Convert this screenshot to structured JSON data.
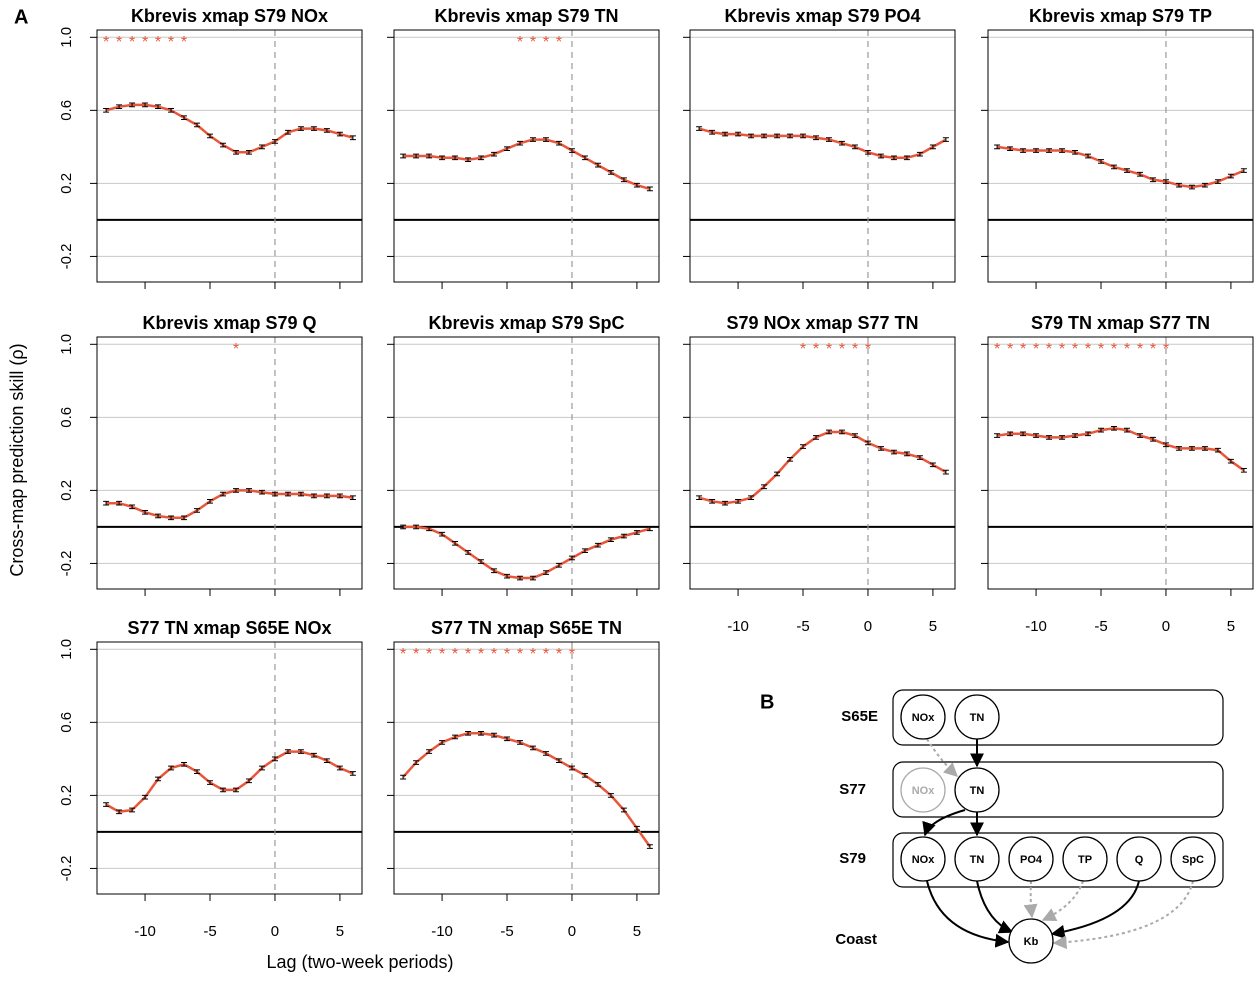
{
  "panel_label": "A",
  "ylabel": "Cross-map prediction skill (ρ)",
  "xlabel": "Lag (two-week periods)",
  "chart_data": [
    {
      "type": "line",
      "title": "Kbrevis xmap S79 NOx",
      "x": [
        -13,
        -12,
        -11,
        -10,
        -9,
        -8,
        -7,
        -6,
        -5,
        -4,
        -3,
        -2,
        -1,
        0,
        1,
        2,
        3,
        4,
        5,
        6
      ],
      "values": [
        0.6,
        0.62,
        0.63,
        0.63,
        0.62,
        0.6,
        0.56,
        0.52,
        0.46,
        0.41,
        0.37,
        0.37,
        0.4,
        0.43,
        0.48,
        0.5,
        0.5,
        0.49,
        0.47,
        0.45
      ],
      "errors": [
        0.01,
        0.01,
        0.01,
        0.01,
        0.01,
        0.01,
        0.01,
        0.01,
        0.01,
        0.01,
        0.01,
        0.01,
        0.01,
        0.01,
        0.01,
        0.01,
        0.01,
        0.01,
        0.01,
        0.01
      ],
      "color": "#e8573a",
      "xlim": [
        -13.7,
        6.7
      ],
      "ylim": [
        -0.34,
        1.04
      ],
      "xticks": [
        -10,
        -5,
        0,
        5
      ],
      "yticks": [
        {
          "value": -0.2,
          "label": "-0.2"
        },
        {
          "value": 0.2,
          "label": "0.2"
        },
        {
          "value": 0.6,
          "label": "0.6"
        },
        {
          "value": 1.0,
          "label": "1.0"
        }
      ],
      "grid": true,
      "xtick_labels": false,
      "ytick_labels": true,
      "sig_symbol": "*",
      "sig_lags": [
        -13,
        -12,
        -11,
        -10,
        -9,
        -8,
        -7
      ]
    },
    {
      "type": "line",
      "title": "Kbrevis xmap S79 TN",
      "x": [
        -13,
        -12,
        -11,
        -10,
        -9,
        -8,
        -7,
        -6,
        -5,
        -4,
        -3,
        -2,
        -1,
        0,
        1,
        2,
        3,
        4,
        5,
        6
      ],
      "values": [
        0.35,
        0.35,
        0.35,
        0.34,
        0.34,
        0.33,
        0.34,
        0.36,
        0.39,
        0.42,
        0.44,
        0.44,
        0.42,
        0.38,
        0.34,
        0.3,
        0.26,
        0.22,
        0.19,
        0.17
      ],
      "errors": [
        0.01,
        0.01,
        0.01,
        0.01,
        0.01,
        0.01,
        0.01,
        0.01,
        0.01,
        0.01,
        0.01,
        0.01,
        0.01,
        0.01,
        0.01,
        0.01,
        0.01,
        0.01,
        0.01,
        0.01
      ],
      "color": "#e8573a",
      "xlim": [
        -13.7,
        6.7
      ],
      "ylim": [
        -0.34,
        1.04
      ],
      "xticks": [
        -10,
        -5,
        0,
        5
      ],
      "yticks": [
        {
          "value": -0.2,
          "label": "-0.2"
        },
        {
          "value": 0.2,
          "label": "0.2"
        },
        {
          "value": 0.6,
          "label": "0.6"
        },
        {
          "value": 1.0,
          "label": "1.0"
        }
      ],
      "grid": true,
      "xtick_labels": false,
      "ytick_labels": false,
      "sig_symbol": "*",
      "sig_lags": [
        -4,
        -3,
        -2,
        -1
      ]
    },
    {
      "type": "line",
      "title": "Kbrevis xmap S79 PO4",
      "x": [
        -13,
        -12,
        -11,
        -10,
        -9,
        -8,
        -7,
        -6,
        -5,
        -4,
        -3,
        -2,
        -1,
        0,
        1,
        2,
        3,
        4,
        5,
        6
      ],
      "values": [
        0.5,
        0.48,
        0.47,
        0.47,
        0.46,
        0.46,
        0.46,
        0.46,
        0.46,
        0.45,
        0.44,
        0.42,
        0.4,
        0.37,
        0.35,
        0.34,
        0.34,
        0.36,
        0.4,
        0.44
      ],
      "errors": [
        0.01,
        0.01,
        0.01,
        0.01,
        0.01,
        0.01,
        0.01,
        0.01,
        0.01,
        0.01,
        0.01,
        0.01,
        0.01,
        0.01,
        0.01,
        0.01,
        0.01,
        0.01,
        0.01,
        0.01
      ],
      "color": "#e8573a",
      "xlim": [
        -13.7,
        6.7
      ],
      "ylim": [
        -0.34,
        1.04
      ],
      "xticks": [
        -10,
        -5,
        0,
        5
      ],
      "yticks": [
        {
          "value": -0.2,
          "label": "-0.2"
        },
        {
          "value": 0.2,
          "label": "0.2"
        },
        {
          "value": 0.6,
          "label": "0.6"
        },
        {
          "value": 1.0,
          "label": "1.0"
        }
      ],
      "grid": true,
      "xtick_labels": false,
      "ytick_labels": false
    },
    {
      "type": "line",
      "title": "Kbrevis xmap S79 TP",
      "x": [
        -13,
        -12,
        -11,
        -10,
        -9,
        -8,
        -7,
        -6,
        -5,
        -4,
        -3,
        -2,
        -1,
        0,
        1,
        2,
        3,
        4,
        5,
        6
      ],
      "values": [
        0.4,
        0.39,
        0.38,
        0.38,
        0.38,
        0.38,
        0.37,
        0.35,
        0.32,
        0.29,
        0.27,
        0.25,
        0.22,
        0.21,
        0.19,
        0.18,
        0.19,
        0.21,
        0.24,
        0.27
      ],
      "errors": [
        0.01,
        0.01,
        0.01,
        0.01,
        0.01,
        0.01,
        0.01,
        0.01,
        0.01,
        0.01,
        0.01,
        0.01,
        0.01,
        0.01,
        0.01,
        0.01,
        0.01,
        0.01,
        0.01,
        0.01
      ],
      "color": "#e8573a",
      "xlim": [
        -13.7,
        6.7
      ],
      "ylim": [
        -0.34,
        1.04
      ],
      "xticks": [
        -10,
        -5,
        0,
        5
      ],
      "yticks": [
        {
          "value": -0.2,
          "label": "-0.2"
        },
        {
          "value": 0.2,
          "label": "0.2"
        },
        {
          "value": 0.6,
          "label": "0.6"
        },
        {
          "value": 1.0,
          "label": "1.0"
        }
      ],
      "grid": true,
      "xtick_labels": false,
      "ytick_labels": false
    },
    {
      "type": "line",
      "title": "Kbrevis xmap S79 Q",
      "x": [
        -13,
        -12,
        -11,
        -10,
        -9,
        -8,
        -7,
        -6,
        -5,
        -4,
        -3,
        -2,
        -1,
        0,
        1,
        2,
        3,
        4,
        5,
        6
      ],
      "values": [
        0.13,
        0.13,
        0.11,
        0.08,
        0.06,
        0.05,
        0.05,
        0.09,
        0.14,
        0.18,
        0.2,
        0.2,
        0.19,
        0.18,
        0.18,
        0.18,
        0.17,
        0.17,
        0.17,
        0.16
      ],
      "errors": [
        0.01,
        0.01,
        0.01,
        0.01,
        0.01,
        0.01,
        0.01,
        0.01,
        0.01,
        0.01,
        0.01,
        0.01,
        0.01,
        0.01,
        0.01,
        0.01,
        0.01,
        0.01,
        0.01,
        0.01
      ],
      "color": "#e8573a",
      "xlim": [
        -13.7,
        6.7
      ],
      "ylim": [
        -0.34,
        1.04
      ],
      "xticks": [
        -10,
        -5,
        0,
        5
      ],
      "yticks": [
        {
          "value": -0.2,
          "label": "-0.2"
        },
        {
          "value": 0.2,
          "label": "0.2"
        },
        {
          "value": 0.6,
          "label": "0.6"
        },
        {
          "value": 1.0,
          "label": "1.0"
        }
      ],
      "grid": true,
      "xtick_labels": false,
      "ytick_labels": true,
      "sig_symbol": "*",
      "sig_lags": [
        -3
      ]
    },
    {
      "type": "line",
      "title": "Kbrevis xmap S79 SpC",
      "x": [
        -13,
        -12,
        -11,
        -10,
        -9,
        -8,
        -7,
        -6,
        -5,
        -4,
        -3,
        -2,
        -1,
        0,
        1,
        2,
        3,
        4,
        5,
        6
      ],
      "values": [
        0.0,
        0.0,
        -0.01,
        -0.04,
        -0.09,
        -0.14,
        -0.19,
        -0.24,
        -0.27,
        -0.28,
        -0.28,
        -0.25,
        -0.21,
        -0.17,
        -0.13,
        -0.1,
        -0.07,
        -0.05,
        -0.03,
        -0.01
      ],
      "errors": [
        0.01,
        0.01,
        0.01,
        0.01,
        0.01,
        0.01,
        0.01,
        0.01,
        0.01,
        0.01,
        0.01,
        0.01,
        0.01,
        0.01,
        0.01,
        0.01,
        0.01,
        0.01,
        0.01,
        0.01
      ],
      "color": "#e8573a",
      "xlim": [
        -13.7,
        6.7
      ],
      "ylim": [
        -0.34,
        1.04
      ],
      "xticks": [
        -10,
        -5,
        0,
        5
      ],
      "yticks": [
        {
          "value": -0.2,
          "label": "-0.2"
        },
        {
          "value": 0.2,
          "label": "0.2"
        },
        {
          "value": 0.6,
          "label": "0.6"
        },
        {
          "value": 1.0,
          "label": "1.0"
        }
      ],
      "grid": true,
      "xtick_labels": false,
      "ytick_labels": false
    },
    {
      "type": "line",
      "title": "S79 NOx xmap S77 TN",
      "x": [
        -13,
        -12,
        -11,
        -10,
        -9,
        -8,
        -7,
        -6,
        -5,
        -4,
        -3,
        -2,
        -1,
        0,
        1,
        2,
        3,
        4,
        5,
        6
      ],
      "values": [
        0.16,
        0.14,
        0.13,
        0.14,
        0.16,
        0.22,
        0.29,
        0.37,
        0.44,
        0.49,
        0.52,
        0.52,
        0.5,
        0.46,
        0.43,
        0.41,
        0.4,
        0.38,
        0.34,
        0.3
      ],
      "errors": [
        0.01,
        0.01,
        0.01,
        0.01,
        0.01,
        0.01,
        0.01,
        0.01,
        0.01,
        0.01,
        0.01,
        0.01,
        0.01,
        0.01,
        0.01,
        0.01,
        0.01,
        0.01,
        0.01,
        0.01
      ],
      "color": "#e8573a",
      "xlim": [
        -13.7,
        6.7
      ],
      "ylim": [
        -0.34,
        1.04
      ],
      "xticks": [
        -10,
        -5,
        0,
        5
      ],
      "yticks": [
        {
          "value": -0.2,
          "label": "-0.2"
        },
        {
          "value": 0.2,
          "label": "0.2"
        },
        {
          "value": 0.6,
          "label": "0.6"
        },
        {
          "value": 1.0,
          "label": "1.0"
        }
      ],
      "grid": true,
      "xtick_labels": true,
      "ytick_labels": false,
      "sig_symbol": "*",
      "sig_lags": [
        -5,
        -4,
        -3,
        -2,
        -1,
        0
      ]
    },
    {
      "type": "line",
      "title": "S79 TN xmap S77 TN",
      "x": [
        -13,
        -12,
        -11,
        -10,
        -9,
        -8,
        -7,
        -6,
        -5,
        -4,
        -3,
        -2,
        -1,
        0,
        1,
        2,
        3,
        4,
        5,
        6
      ],
      "values": [
        0.5,
        0.51,
        0.51,
        0.5,
        0.49,
        0.49,
        0.5,
        0.51,
        0.53,
        0.54,
        0.53,
        0.5,
        0.48,
        0.45,
        0.43,
        0.43,
        0.43,
        0.42,
        0.36,
        0.31
      ],
      "errors": [
        0.01,
        0.01,
        0.01,
        0.01,
        0.01,
        0.01,
        0.01,
        0.01,
        0.01,
        0.01,
        0.01,
        0.01,
        0.01,
        0.01,
        0.01,
        0.01,
        0.01,
        0.01,
        0.01,
        0.01
      ],
      "color": "#e8573a",
      "xlim": [
        -13.7,
        6.7
      ],
      "ylim": [
        -0.34,
        1.04
      ],
      "xticks": [
        -10,
        -5,
        0,
        5
      ],
      "yticks": [
        {
          "value": -0.2,
          "label": "-0.2"
        },
        {
          "value": 0.2,
          "label": "0.2"
        },
        {
          "value": 0.6,
          "label": "0.6"
        },
        {
          "value": 1.0,
          "label": "1.0"
        }
      ],
      "grid": true,
      "xtick_labels": true,
      "ytick_labels": false,
      "sig_symbol": "*",
      "sig_lags": [
        -13,
        -12,
        -11,
        -10,
        -9,
        -8,
        -7,
        -6,
        -5,
        -4,
        -3,
        -2,
        -1,
        0
      ]
    },
    {
      "type": "line",
      "title": "S77 TN xmap S65E NOx",
      "x": [
        -13,
        -12,
        -11,
        -10,
        -9,
        -8,
        -7,
        -6,
        -5,
        -4,
        -3,
        -2,
        -1,
        0,
        1,
        2,
        3,
        4,
        5,
        6
      ],
      "values": [
        0.15,
        0.11,
        0.12,
        0.19,
        0.29,
        0.35,
        0.37,
        0.33,
        0.27,
        0.23,
        0.23,
        0.28,
        0.35,
        0.4,
        0.44,
        0.44,
        0.42,
        0.39,
        0.35,
        0.32
      ],
      "errors": [
        0.01,
        0.01,
        0.01,
        0.01,
        0.01,
        0.01,
        0.01,
        0.01,
        0.01,
        0.01,
        0.01,
        0.01,
        0.01,
        0.01,
        0.01,
        0.01,
        0.01,
        0.01,
        0.01,
        0.01
      ],
      "color": "#e8573a",
      "xlim": [
        -13.7,
        6.7
      ],
      "ylim": [
        -0.34,
        1.04
      ],
      "xticks": [
        -10,
        -5,
        0,
        5
      ],
      "yticks": [
        {
          "value": -0.2,
          "label": "-0.2"
        },
        {
          "value": 0.2,
          "label": "0.2"
        },
        {
          "value": 0.6,
          "label": "0.6"
        },
        {
          "value": 1.0,
          "label": "1.0"
        }
      ],
      "grid": true,
      "xtick_labels": true,
      "ytick_labels": true
    },
    {
      "type": "line",
      "title": "S77 TN xmap S65E TN",
      "x": [
        -13,
        -12,
        -11,
        -10,
        -9,
        -8,
        -7,
        -6,
        -5,
        -4,
        -3,
        -2,
        -1,
        0,
        1,
        2,
        3,
        4,
        5,
        6
      ],
      "values": [
        0.3,
        0.38,
        0.44,
        0.49,
        0.52,
        0.54,
        0.54,
        0.53,
        0.51,
        0.49,
        0.46,
        0.43,
        0.39,
        0.35,
        0.31,
        0.26,
        0.2,
        0.12,
        0.02,
        -0.08
      ],
      "errors": [
        0.01,
        0.01,
        0.01,
        0.01,
        0.01,
        0.01,
        0.01,
        0.01,
        0.01,
        0.01,
        0.01,
        0.01,
        0.01,
        0.01,
        0.01,
        0.01,
        0.01,
        0.01,
        0.01,
        0.01
      ],
      "color": "#e8573a",
      "xlim": [
        -13.7,
        6.7
      ],
      "ylim": [
        -0.34,
        1.04
      ],
      "xticks": [
        -10,
        -5,
        0,
        5
      ],
      "yticks": [
        {
          "value": -0.2,
          "label": "-0.2"
        },
        {
          "value": 0.2,
          "label": "0.2"
        },
        {
          "value": 0.6,
          "label": "0.6"
        },
        {
          "value": 1.0,
          "label": "1.0"
        }
      ],
      "grid": true,
      "xtick_labels": true,
      "ytick_labels": false,
      "sig_symbol": "*",
      "sig_lags": [
        -13,
        -12,
        -11,
        -10,
        -9,
        -8,
        -7,
        -6,
        -5,
        -4,
        -3,
        -2,
        -1,
        0
      ]
    }
  ],
  "diagram": {
    "label": "B",
    "rows": [
      {
        "name": "S65E",
        "nodes": [
          "NOx",
          "TN"
        ]
      },
      {
        "name": "S77",
        "nodes": [
          "NOx",
          "TN"
        ]
      },
      {
        "name": "S79",
        "nodes": [
          "NOx",
          "TN",
          "PO4",
          "TP",
          "Q",
          "SpC"
        ]
      }
    ],
    "coast": {
      "name": "Coast",
      "node": "Kb"
    }
  }
}
